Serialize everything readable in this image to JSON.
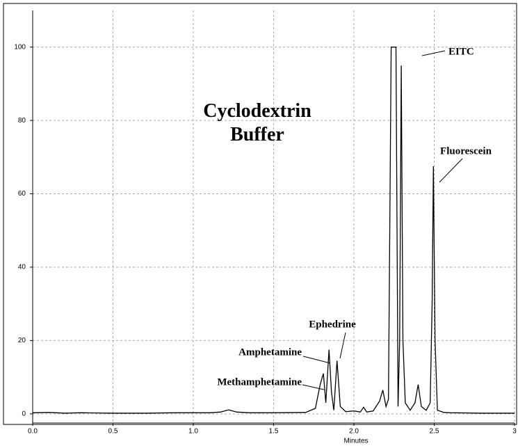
{
  "chart_data": {
    "type": "line",
    "title": "Cyclodextrin Buffer",
    "xlabel": "Minutes",
    "x": [
      0,
      0.1,
      0.2,
      0.3,
      0.5,
      0.7,
      0.9,
      1.1,
      1.17,
      1.22,
      1.27,
      1.35,
      1.5,
      1.7,
      1.76,
      1.79,
      1.81,
      1.825,
      1.845,
      1.86,
      1.875,
      1.895,
      1.915,
      1.95,
      2.0,
      2.04,
      2.06,
      2.08,
      2.12,
      2.16,
      2.18,
      2.2,
      2.215,
      2.232,
      2.262,
      2.275,
      2.285,
      2.295,
      2.305,
      2.32,
      2.35,
      2.38,
      2.4,
      2.42,
      2.45,
      2.475,
      2.487,
      2.495,
      2.505,
      2.52,
      2.56,
      2.6,
      2.8,
      3.0
    ],
    "values": [
      0.3,
      0.4,
      0.2,
      0.3,
      0.2,
      0.2,
      0.3,
      0.3,
      0.5,
      1.1,
      0.5,
      0.3,
      0.3,
      0.4,
      1.5,
      8,
      11,
      3,
      17.5,
      6,
      1,
      14.5,
      2,
      0.6,
      0.8,
      0.5,
      1.8,
      0.5,
      0.8,
      3.5,
      6.5,
      2,
      4,
      100,
      100,
      2,
      20,
      95,
      20,
      3,
      1,
      3,
      8,
      2,
      1,
      3,
      30,
      67.5,
      20,
      1,
      0.4,
      0.3,
      0.2,
      0.2
    ],
    "color": "#000000",
    "xlim": [
      0,
      3
    ],
    "xticks": [
      {
        "value": 0,
        "label": "0.0"
      },
      0.5,
      {
        "value": 1,
        "label": "1.0"
      },
      1.5,
      {
        "value": 2,
        "label": "2.0"
      },
      2.5,
      3
    ],
    "ylim": [
      -2.5,
      110
    ],
    "yticks": [
      0,
      20,
      40,
      60,
      80,
      100
    ],
    "grid": true,
    "annotations": [
      "EITC",
      "Fluorescein",
      "Ephedrine",
      "Amphetamine",
      "Methamphetamine"
    ]
  }
}
